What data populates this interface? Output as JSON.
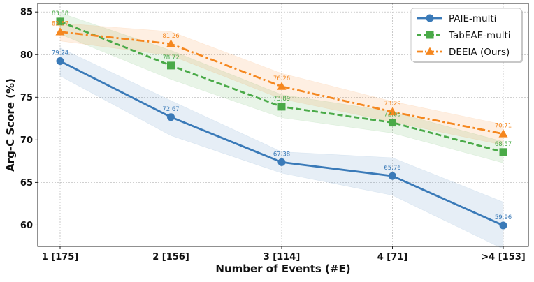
{
  "chart_data": {
    "type": "line",
    "title": "",
    "xlabel": "Number of Events (#E)",
    "ylabel": "Arg-C Score (%)",
    "categories": [
      "1 [175]",
      "2 [156]",
      "3 [114]",
      "4 [71]",
      ">4 [153]"
    ],
    "ylim": [
      57.5,
      86
    ],
    "yticks": [
      60,
      65,
      70,
      75,
      80,
      85
    ],
    "grid": true,
    "legend_position": "top-right",
    "series": [
      {
        "name": "PAIE-multi",
        "color": "#3a7ab8",
        "marker": "circle",
        "dash": "solid",
        "values": [
          79.24,
          72.67,
          67.38,
          65.76,
          59.96
        ],
        "labels": [
          "79.24",
          "72.67",
          "67.38",
          "65.76",
          "59.96"
        ],
        "band_upper": [
          80.8,
          74.6,
          68.6,
          67.9,
          62.7
        ],
        "band_lower": [
          77.5,
          70.5,
          66.1,
          63.5,
          57.2
        ]
      },
      {
        "name": "TabEAE-multi",
        "color": "#4aaa48",
        "marker": "square",
        "dash": "dashed",
        "values": [
          83.88,
          78.72,
          73.89,
          72.03,
          68.57
        ],
        "labels": [
          "83.88",
          "78.72",
          "73.89",
          "72.03",
          "68.57"
        ],
        "band_upper": [
          84.9,
          80.5,
          75.3,
          73.3,
          69.8
        ],
        "band_lower": [
          82.4,
          77.1,
          72.6,
          70.8,
          67.3
        ]
      },
      {
        "name": "DEEIA (Ours)",
        "color": "#f5871f",
        "marker": "triangle",
        "dash": "dashdot",
        "values": [
          82.67,
          81.26,
          76.26,
          73.29,
          70.71
        ],
        "labels": [
          "82.67",
          "81.26",
          "76.26",
          "73.29",
          "70.71"
        ],
        "band_upper": [
          83.7,
          82.7,
          77.8,
          74.5,
          71.8
        ],
        "band_lower": [
          81.6,
          79.9,
          74.8,
          72.1,
          69.4
        ]
      }
    ]
  }
}
